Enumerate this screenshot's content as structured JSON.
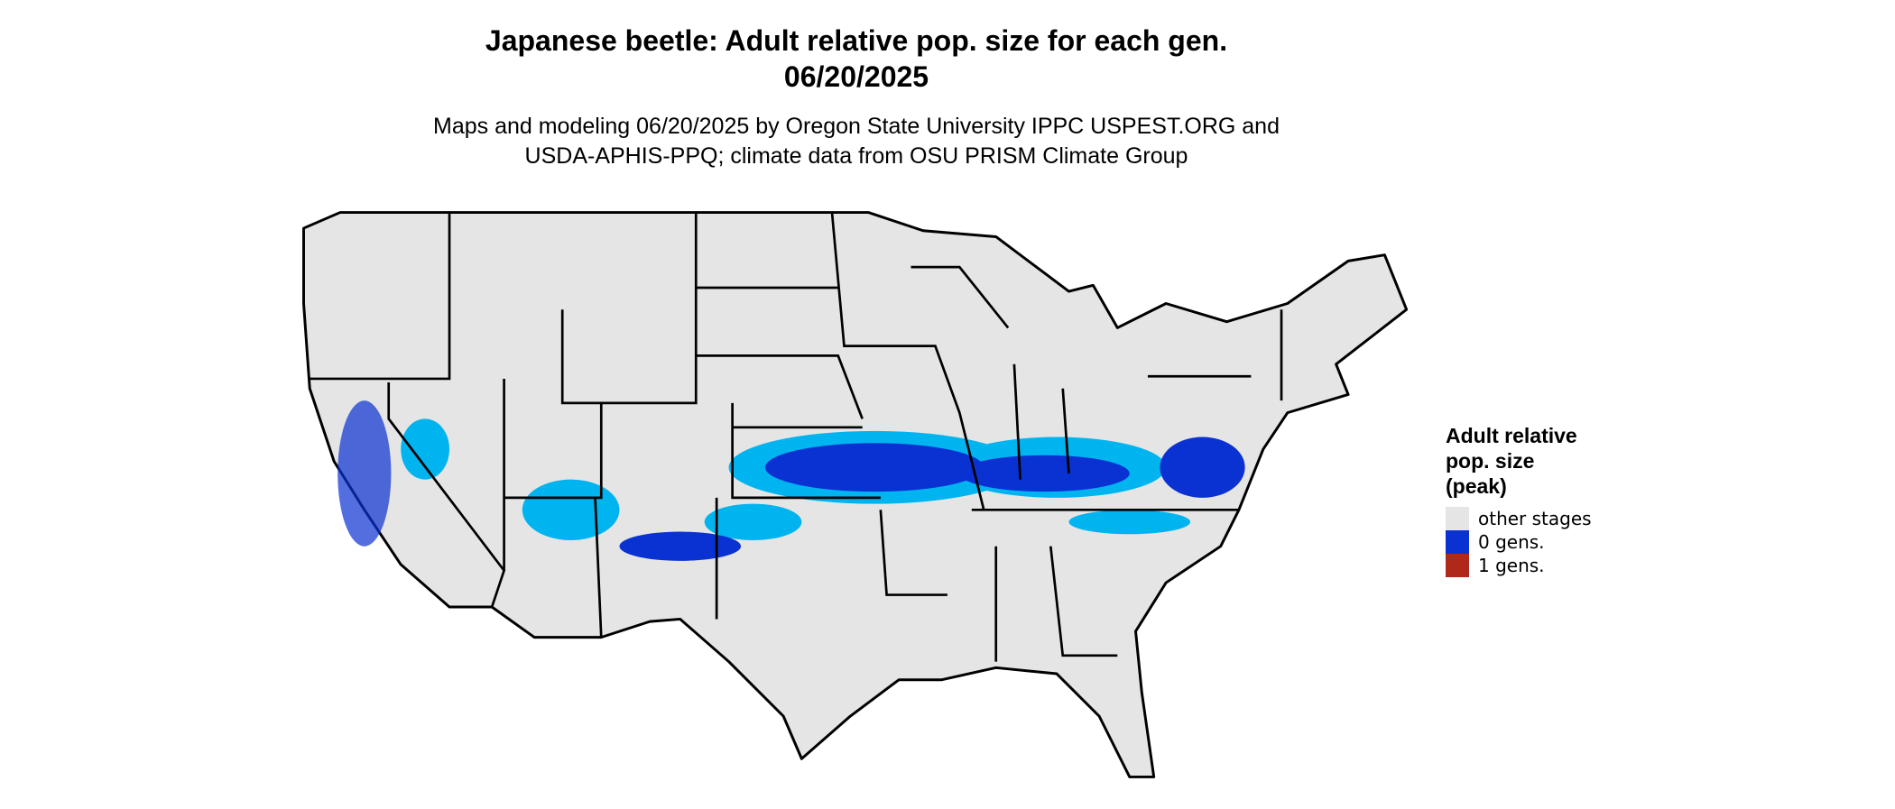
{
  "header": {
    "title": [
      "Japanese beetle: Adult relative pop. size for each gen.",
      "06/20/2025"
    ],
    "subtitle": [
      "Maps and modeling 06/20/2025 by Oregon State University IPPC USPEST.ORG and",
      "USDA-APHIS-PPQ; climate data from OSU PRISM Climate Group"
    ]
  },
  "legend": {
    "title": [
      "Adult relative",
      "pop. size",
      "(peak)"
    ],
    "items": [
      {
        "label": "other stages",
        "color": "#e5e5e5"
      },
      {
        "label": "0 gens.",
        "color": "#0a32d2"
      },
      {
        "label": "1 gens.",
        "color": "#b0281a"
      }
    ]
  }
}
